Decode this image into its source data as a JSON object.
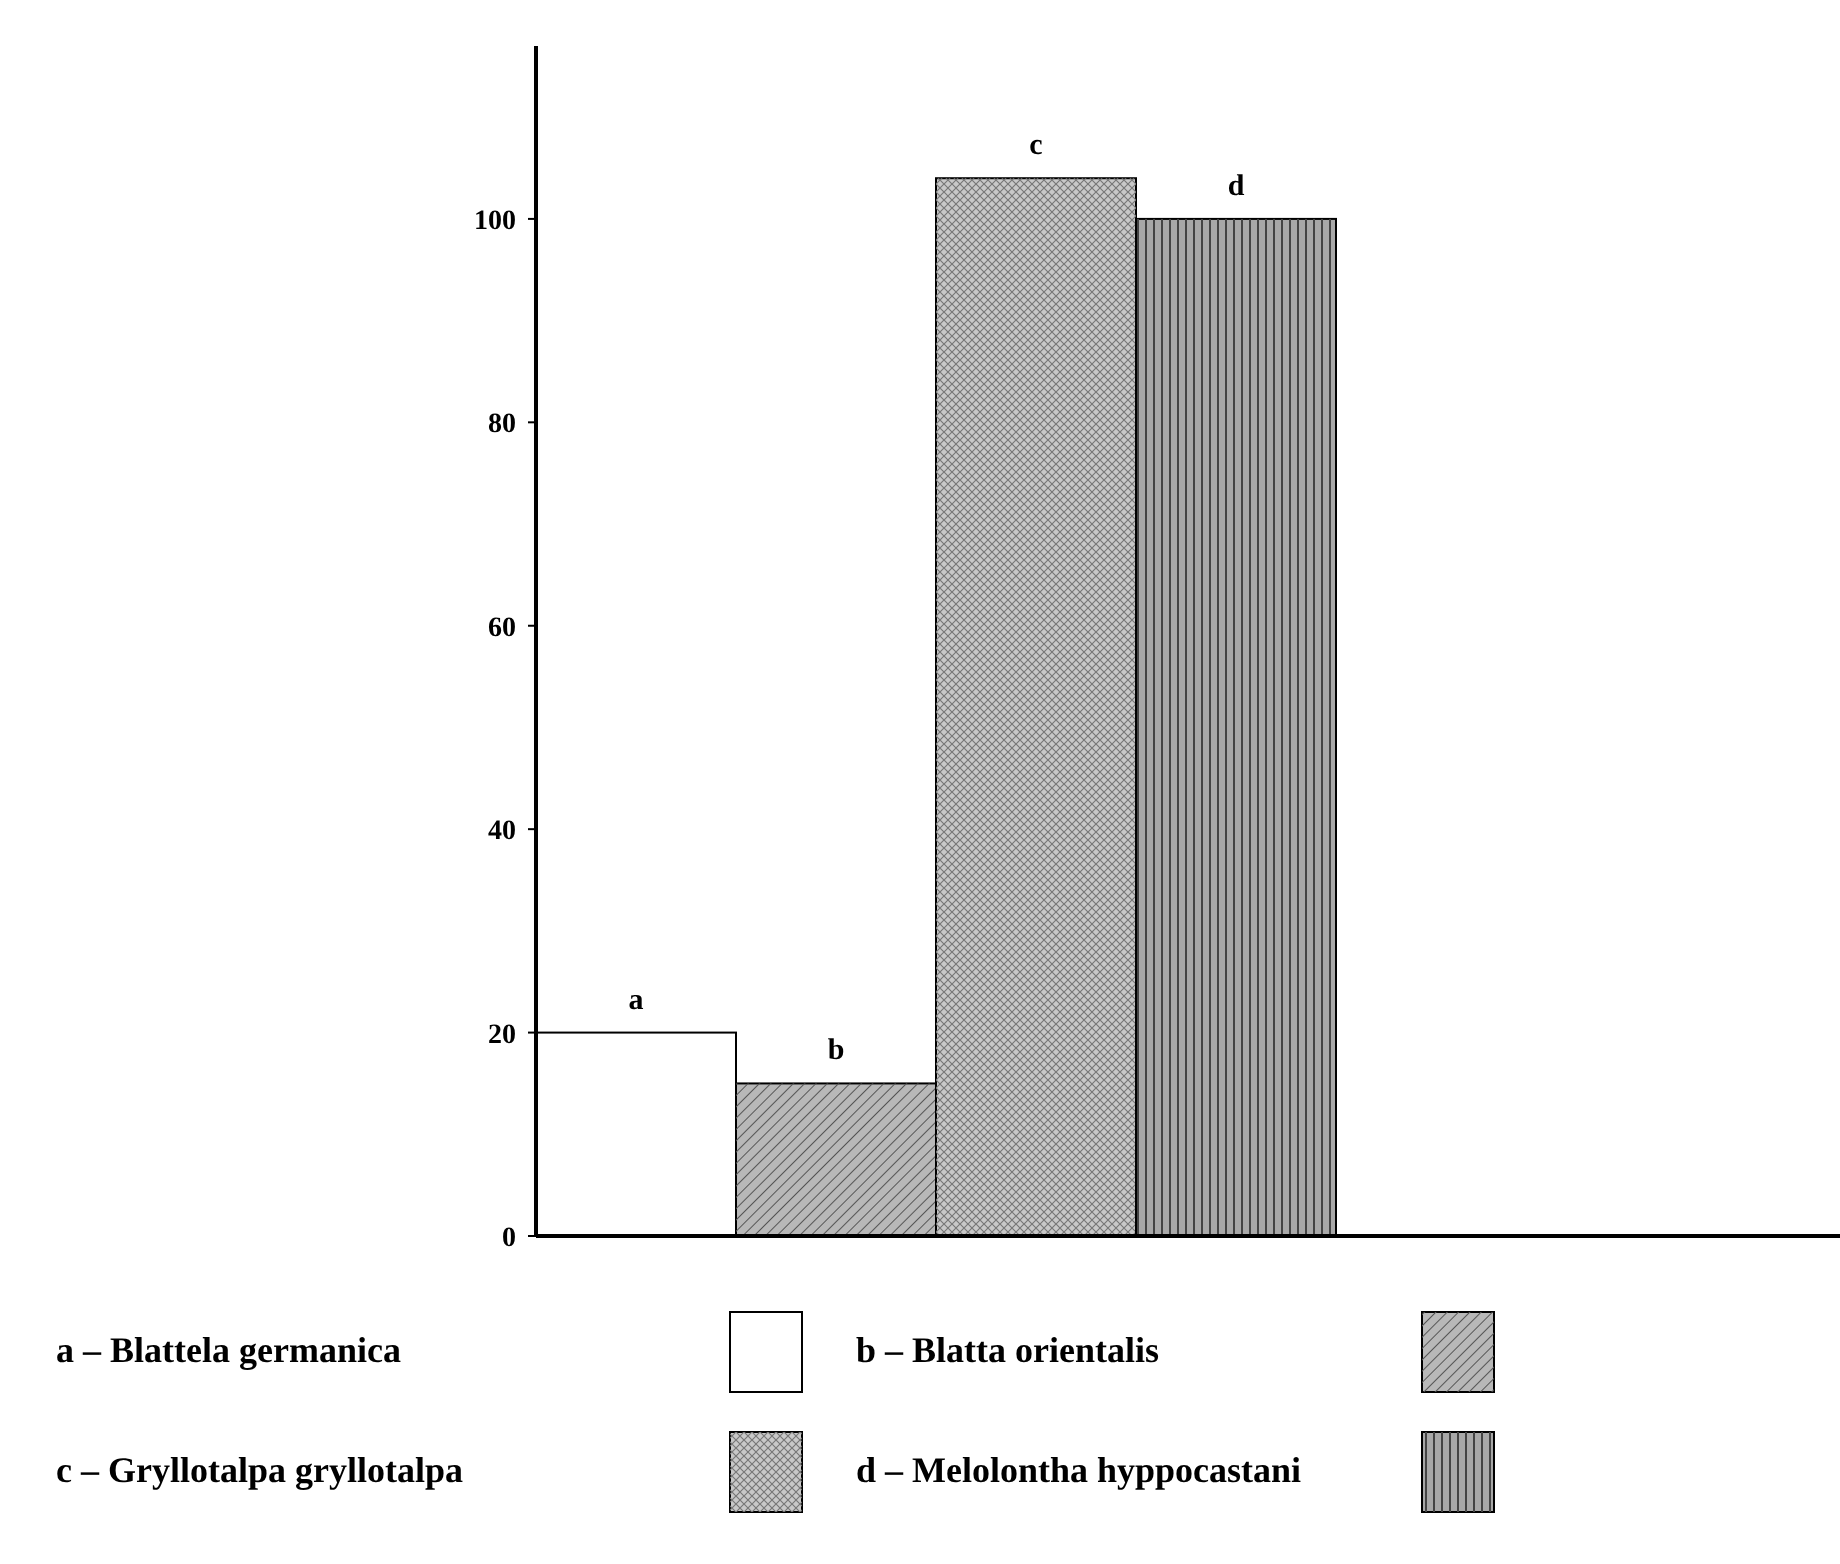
{
  "chart_data": {
    "type": "bar",
    "categories": [
      "a",
      "b",
      "c",
      "d"
    ],
    "values": [
      20,
      15,
      104,
      100
    ],
    "colors": [
      "#ffffff",
      "#b8b8b8",
      "#c8c8c8",
      "#a8a8a8"
    ],
    "ylim": [
      0,
      117
    ],
    "yticks": [
      0,
      20,
      40,
      60,
      80,
      100
    ],
    "grid": false,
    "annotations": [
      "a – Blattela germanica",
      "b – Blatta orientalis",
      "c – Gryllotalpa gryllotalpa",
      "d – Melolontha hyppocastani"
    ]
  }
}
